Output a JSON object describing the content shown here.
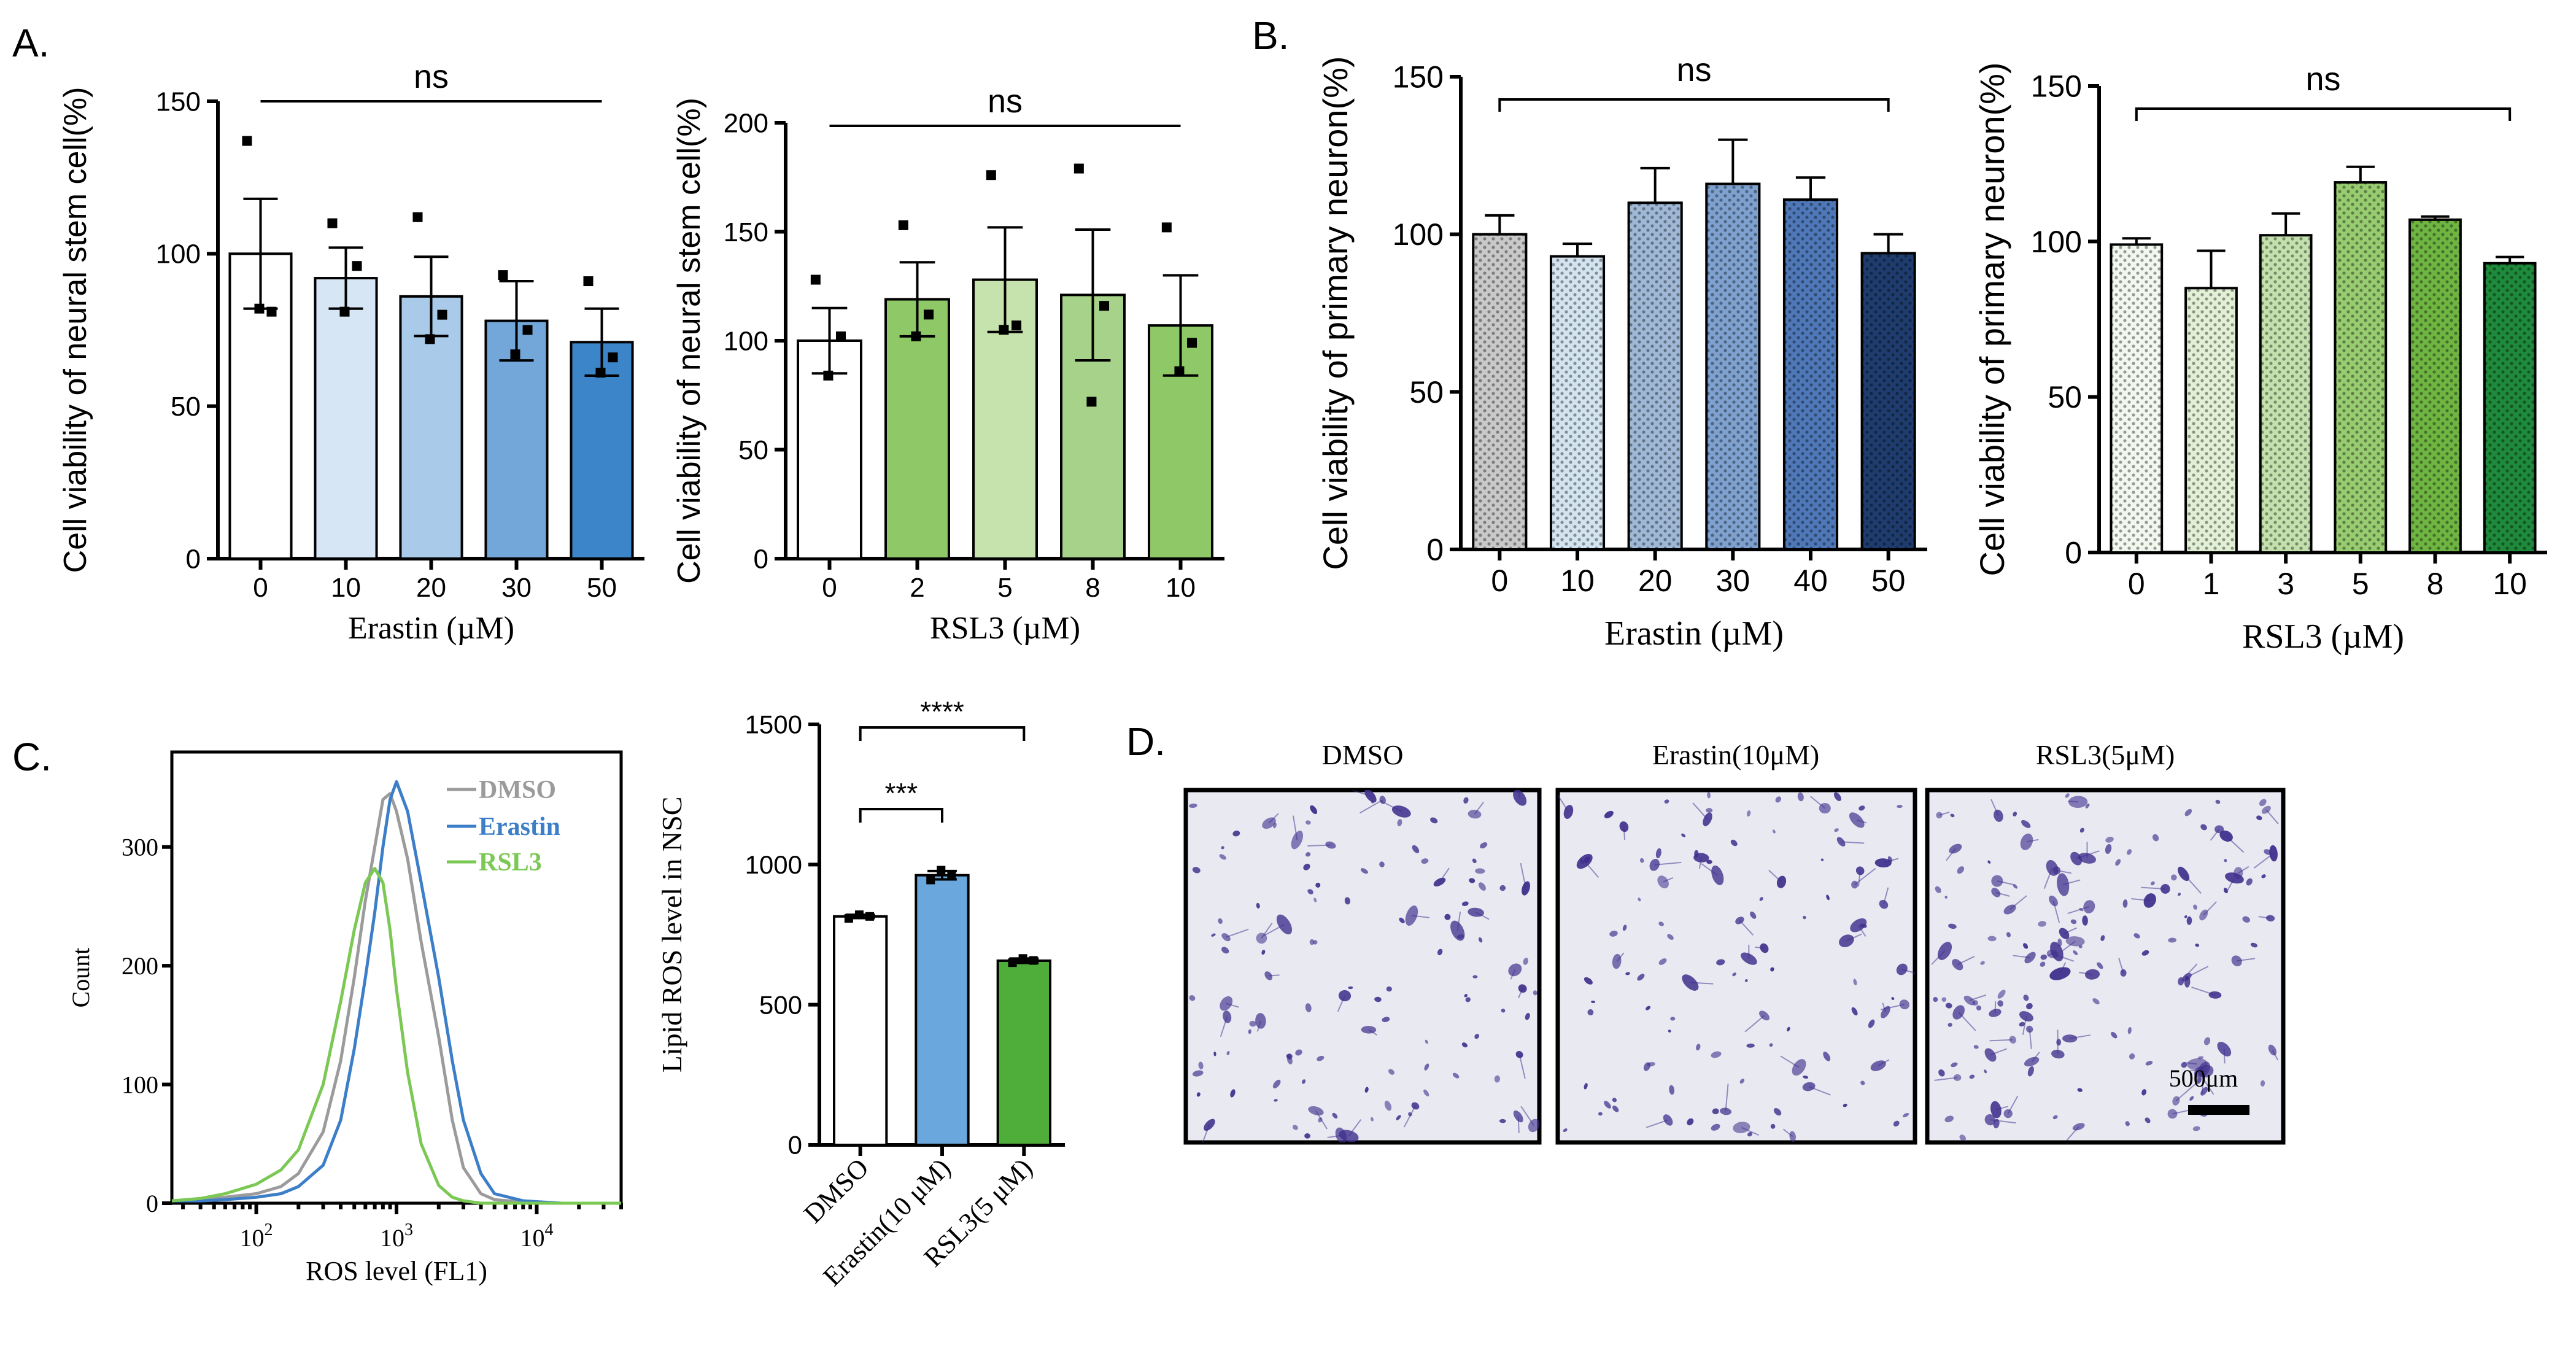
{
  "panel_labels": {
    "a": "A.",
    "b": "B.",
    "c": "C.",
    "d": "D."
  },
  "colors": {
    "white": "#ffffff",
    "blue1": "#d6e6f5",
    "blue2": "#a9cbe9",
    "blue3": "#73a7da",
    "blue4": "#3c85c8",
    "green1": "#8fc866",
    "green2": "#c6e3ae",
    "green3": "#a7d28a",
    "green4": "#8fc866",
    "grey_pat": "#c9c9c9",
    "light_blue_pat": "#d3e3ef",
    "mid_blue_pat": "#9fb8d6",
    "blue_pat": "#7ea1cf",
    "deep_blue_pat": "#4f78b8",
    "navy_pat": "#1f3c6e",
    "lg1": "#f3f8ee",
    "lg2": "#e2f0d6",
    "lg3": "#c3e0ad",
    "lg4": "#98cc70",
    "lg5": "#6fb542",
    "lg6": "#1f8a3c",
    "hist_dmso": "#9b9b9b",
    "hist_erastin": "#3c7fc8",
    "hist_rsl3": "#7cc855",
    "c_bar_erastin": "#6aa7dc",
    "c_bar_rsl3": "#4fae3a",
    "cells": "#3f2f8c"
  },
  "chart_data": [
    {
      "id": "A1",
      "type": "bar",
      "title": "",
      "xlabel": "Erastin (µM)",
      "ylabel": "Cell viability of neural stem cell(%)",
      "categories": [
        "0",
        "10",
        "20",
        "30",
        "50"
      ],
      "values": [
        100,
        92,
        86,
        78,
        71
      ],
      "errors": [
        18,
        10,
        13,
        13,
        11
      ],
      "points": [
        [
          137,
          81,
          82
        ],
        [
          110,
          96,
          81
        ],
        [
          112,
          80,
          72
        ],
        [
          93,
          75,
          67
        ],
        [
          91,
          66,
          61
        ]
      ],
      "ylim": [
        0,
        150
      ],
      "yticks": [
        0,
        50,
        100,
        150
      ],
      "significance": [
        {
          "label": "ns",
          "from": "0",
          "to": "50"
        }
      ],
      "bar_colors": [
        "white",
        "blue1",
        "blue2",
        "blue3",
        "blue4"
      ]
    },
    {
      "id": "A2",
      "type": "bar",
      "xlabel": "RSL3 (µM)",
      "ylabel": "Cell viability of neural stem cell(%)",
      "categories": [
        "0",
        "2",
        "5",
        "8",
        "10"
      ],
      "values": [
        100,
        119,
        128,
        121,
        107
      ],
      "errors": [
        15,
        17,
        24,
        30,
        23
      ],
      "points": [
        [
          128,
          102,
          84
        ],
        [
          153,
          112,
          102
        ],
        [
          176,
          107,
          105
        ],
        [
          179,
          116,
          72
        ],
        [
          152,
          99,
          86
        ]
      ],
      "ylim": [
        0,
        200
      ],
      "yticks": [
        0,
        50,
        100,
        150,
        200
      ],
      "significance": [
        {
          "label": "ns",
          "from": "0",
          "to": "10"
        }
      ],
      "bar_colors": [
        "white",
        "green1",
        "green2",
        "green3",
        "green4"
      ]
    },
    {
      "id": "B1",
      "type": "bar",
      "xlabel": "Erastin (µM)",
      "ylabel": "Cell viability of primary neuron(%)",
      "categories": [
        "0",
        "10",
        "20",
        "30",
        "40",
        "50"
      ],
      "values": [
        100,
        93,
        110,
        116,
        111,
        94
      ],
      "errors": [
        6,
        4,
        11,
        14,
        7,
        6
      ],
      "ylim": [
        0,
        150
      ],
      "yticks": [
        0,
        50,
        100,
        150
      ],
      "significance": [
        {
          "label": "ns",
          "from": "0",
          "to": "50"
        }
      ],
      "bar_colors": [
        "grey_pat",
        "light_blue_pat",
        "mid_blue_pat",
        "blue_pat",
        "deep_blue_pat",
        "navy_pat"
      ]
    },
    {
      "id": "B2",
      "type": "bar",
      "xlabel": "RSL3 (µM)",
      "ylabel": "Cell viability of primary neuron(%)",
      "categories": [
        "0",
        "1",
        "3",
        "5",
        "8",
        "10"
      ],
      "values": [
        99,
        85,
        102,
        119,
        107,
        93
      ],
      "errors": [
        2,
        12,
        7,
        5,
        1,
        2
      ],
      "ylim": [
        0,
        150
      ],
      "yticks": [
        0,
        50,
        100,
        150
      ],
      "significance": [
        {
          "label": "ns",
          "from": "0",
          "to": "10"
        }
      ],
      "bar_colors": [
        "lg1",
        "lg2",
        "lg3",
        "lg4",
        "lg5",
        "lg6"
      ]
    },
    {
      "id": "C1",
      "type": "line",
      "xlabel": "ROS level  (FL1)",
      "ylabel": "Count",
      "xscale": "log",
      "xlim": [
        25,
        40000
      ],
      "ylim": [
        0,
        380
      ],
      "yticks": [
        0,
        100,
        200,
        300
      ],
      "xticks": [
        {
          "value": 100,
          "base": "10",
          "exp": "2"
        },
        {
          "value": 1000,
          "base": "10",
          "exp": "3"
        },
        {
          "value": 10000,
          "base": "10",
          "exp": "4"
        }
      ],
      "legend": [
        "DMSO",
        "Erastin",
        "RSL3"
      ],
      "series": [
        {
          "name": "DMSO",
          "color": "hist_dmso",
          "x": [
            25,
            40,
            60,
            100,
            150,
            200,
            300,
            400,
            500,
            600,
            700,
            800,
            900,
            1000,
            1200,
            1500,
            2000,
            2500,
            3000,
            4000,
            5000,
            8000,
            15000,
            40000
          ],
          "y": [
            2,
            3,
            5,
            8,
            14,
            25,
            60,
            120,
            190,
            255,
            300,
            340,
            345,
            330,
            290,
            220,
            140,
            70,
            30,
            8,
            3,
            1,
            0,
            0
          ]
        },
        {
          "name": "Erastin",
          "color": "hist_erastin",
          "x": [
            25,
            40,
            60,
            100,
            150,
            200,
            300,
            400,
            500,
            600,
            700,
            800,
            900,
            1000,
            1200,
            1500,
            2000,
            2500,
            3000,
            4000,
            5000,
            8000,
            15000,
            40000
          ],
          "y": [
            2,
            2,
            3,
            5,
            8,
            14,
            32,
            70,
            130,
            190,
            245,
            300,
            340,
            355,
            330,
            270,
            190,
            120,
            70,
            25,
            8,
            2,
            0,
            0
          ]
        },
        {
          "name": "RSL3",
          "color": "hist_rsl3",
          "x": [
            25,
            40,
            60,
            100,
            150,
            200,
            300,
            400,
            500,
            600,
            700,
            800,
            900,
            1000,
            1200,
            1500,
            2000,
            2500,
            3000,
            4000,
            5000,
            8000,
            15000,
            40000
          ],
          "y": [
            2,
            4,
            8,
            16,
            28,
            45,
            100,
            170,
            230,
            270,
            282,
            270,
            230,
            180,
            110,
            50,
            15,
            5,
            2,
            0,
            0,
            0,
            0,
            0
          ]
        }
      ]
    },
    {
      "id": "C2",
      "type": "bar",
      "xlabel": "",
      "ylabel": "Lipid ROS level in NSC",
      "categories": [
        "DMSO",
        "Erastin(10 μM)",
        "RSL3(5 μM)"
      ],
      "values": [
        815,
        962,
        657
      ],
      "errors": [
        6,
        15,
        8
      ],
      "points": [
        [
          808,
          815,
          821
        ],
        [
          945,
          960,
          980
        ],
        [
          650,
          658,
          665
        ]
      ],
      "ylim": [
        0,
        1500
      ],
      "yticks": [
        0,
        500,
        1000,
        1500
      ],
      "significance": [
        {
          "label": "***",
          "from": "DMSO",
          "to": "Erastin(10 μM)"
        },
        {
          "label": "****",
          "from": "DMSO",
          "to": "RSL3(5 μM)"
        }
      ],
      "bar_colors": [
        "white",
        "c_bar_erastin",
        "c_bar_rsl3"
      ]
    }
  ],
  "panel_d": {
    "titles": [
      "DMSO",
      "Erastin(10μM)",
      "RSL3(5μM)"
    ],
    "scale_bar_label": "500μm"
  }
}
